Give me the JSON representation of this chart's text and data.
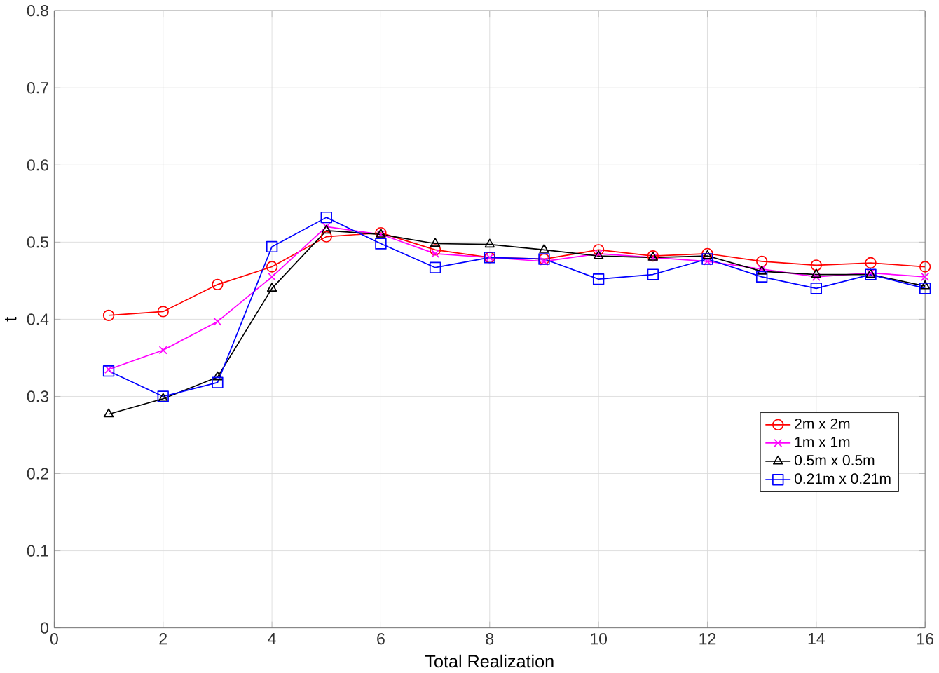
{
  "chart_data": {
    "type": "line",
    "xlabel": "Total Realization",
    "ylabel": "t",
    "x": [
      1,
      2,
      3,
      4,
      5,
      6,
      7,
      8,
      9,
      10,
      11,
      12,
      13,
      14,
      15,
      16
    ],
    "xlim": [
      0,
      16
    ],
    "xticks": [
      0,
      2,
      4,
      6,
      8,
      10,
      12,
      14,
      16
    ],
    "ylim": [
      0,
      0.8
    ],
    "yticks": [
      0,
      0.1,
      0.2,
      0.3,
      0.4,
      0.5,
      0.6,
      0.7,
      0.8
    ],
    "grid": true,
    "legend": "right",
    "line_style": "solid",
    "series": [
      {
        "name": "2m x 2m",
        "color": "#ff0000",
        "marker": "circle",
        "values": [
          0.405,
          0.41,
          0.445,
          0.468,
          0.507,
          0.512,
          0.49,
          0.48,
          0.478,
          0.49,
          0.482,
          0.485,
          0.475,
          0.47,
          0.473,
          0.468
        ]
      },
      {
        "name": "1m x 1m",
        "color": "#ff00ff",
        "marker": "cross",
        "values": [
          0.335,
          0.36,
          0.397,
          0.455,
          0.52,
          0.51,
          0.485,
          0.48,
          0.475,
          0.485,
          0.48,
          0.475,
          0.465,
          0.455,
          0.46,
          0.455
        ]
      },
      {
        "name": "0.5m x 0.5m",
        "color": "#000000",
        "marker": "triangle",
        "values": [
          0.277,
          0.297,
          0.325,
          0.44,
          0.515,
          0.51,
          0.498,
          0.497,
          0.49,
          0.482,
          0.48,
          0.482,
          0.462,
          0.458,
          0.458,
          0.443
        ]
      },
      {
        "name": "0.21m x 0.21m",
        "color": "#0000ff",
        "marker": "square",
        "values": [
          0.333,
          0.3,
          0.318,
          0.494,
          0.532,
          0.498,
          0.467,
          0.48,
          0.478,
          0.452,
          0.458,
          0.478,
          0.455,
          0.44,
          0.458,
          0.44
        ]
      }
    ]
  }
}
